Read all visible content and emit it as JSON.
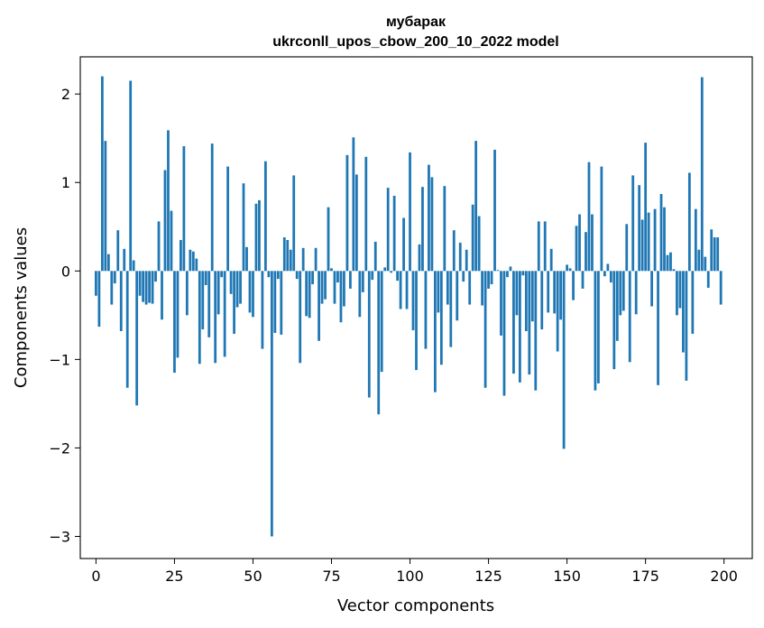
{
  "chart_data": {
    "type": "bar",
    "title": "мубарак",
    "subtitle": "ukrconll_upos_cbow_200_10_2022 model",
    "xlabel": "Vector components",
    "ylabel": "Components values",
    "xlim": [
      -5,
      209
    ],
    "ylim": [
      -3.25,
      2.42
    ],
    "xticks": [
      0,
      25,
      50,
      75,
      100,
      125,
      150,
      175,
      200
    ],
    "yticks": [
      -3,
      -2,
      -1,
      0,
      1,
      2
    ],
    "ytick_labels": [
      "−3",
      "−2",
      "−1",
      "0",
      "1",
      "2"
    ],
    "bar_color": "#1f77b4",
    "grid": false,
    "x": [
      0,
      1,
      2,
      3,
      4,
      5,
      6,
      7,
      8,
      9,
      10,
      11,
      12,
      13,
      14,
      15,
      16,
      17,
      18,
      19,
      20,
      21,
      22,
      23,
      24,
      25,
      26,
      27,
      28,
      29,
      30,
      31,
      32,
      33,
      34,
      35,
      36,
      37,
      38,
      39,
      40,
      41,
      42,
      43,
      44,
      45,
      46,
      47,
      48,
      49,
      50,
      51,
      52,
      53,
      54,
      55,
      56,
      57,
      58,
      59,
      60,
      61,
      62,
      63,
      64,
      65,
      66,
      67,
      68,
      69,
      70,
      71,
      72,
      73,
      74,
      75,
      76,
      77,
      78,
      79,
      80,
      81,
      82,
      83,
      84,
      85,
      86,
      87,
      88,
      89,
      90,
      91,
      92,
      93,
      94,
      95,
      96,
      97,
      98,
      99,
      100,
      101,
      102,
      103,
      104,
      105,
      106,
      107,
      108,
      109,
      110,
      111,
      112,
      113,
      114,
      115,
      116,
      117,
      118,
      119,
      120,
      121,
      122,
      123,
      124,
      125,
      126,
      127,
      128,
      129,
      130,
      131,
      132,
      133,
      134,
      135,
      136,
      137,
      138,
      139,
      140,
      141,
      142,
      143,
      144,
      145,
      146,
      147,
      148,
      149,
      150,
      151,
      152,
      153,
      154,
      155,
      156,
      157,
      158,
      159,
      160,
      161,
      162,
      163,
      164,
      165,
      166,
      167,
      168,
      169,
      170,
      171,
      172,
      173,
      174,
      175,
      176,
      177,
      178,
      179,
      180,
      181,
      182,
      183,
      184,
      185,
      186,
      187,
      188,
      189,
      190,
      191,
      192,
      193,
      194,
      195,
      196,
      197,
      198,
      199
    ],
    "values": [
      -0.28,
      -0.63,
      2.2,
      1.47,
      0.19,
      -0.38,
      -0.14,
      0.46,
      -0.68,
      0.25,
      -1.32,
      2.15,
      0.12,
      -1.52,
      -0.28,
      -0.35,
      -0.38,
      -0.36,
      -0.37,
      -0.12,
      0.56,
      -0.55,
      1.14,
      1.59,
      0.68,
      -1.15,
      -0.98,
      0.35,
      1.41,
      -0.5,
      0.24,
      0.22,
      0.14,
      -1.05,
      -0.66,
      -0.16,
      -0.75,
      1.44,
      -1.04,
      -0.49,
      -0.07,
      -0.97,
      1.18,
      -0.26,
      -0.71,
      -0.41,
      -0.37,
      0.99,
      0.27,
      -0.47,
      -0.52,
      0.76,
      0.8,
      -0.88,
      1.24,
      -0.07,
      -3.0,
      -0.7,
      -0.09,
      -0.72,
      0.38,
      0.35,
      0.24,
      1.08,
      -0.09,
      -1.04,
      0.26,
      -0.51,
      -0.53,
      -0.15,
      0.26,
      -0.79,
      -0.37,
      -0.32,
      0.72,
      0.03,
      -0.37,
      -0.13,
      -0.58,
      -0.4,
      1.31,
      -0.2,
      1.51,
      1.09,
      -0.52,
      -0.24,
      1.29,
      -1.43,
      -0.1,
      0.33,
      -1.62,
      -1.14,
      0.04,
      0.94,
      -0.02,
      0.85,
      -0.11,
      -0.43,
      0.6,
      -0.43,
      1.34,
      -0.67,
      -1.12,
      0.3,
      0.95,
      -0.88,
      1.2,
      1.06,
      -1.37,
      -0.47,
      -1.06,
      0.96,
      -0.38,
      -0.86,
      0.46,
      -0.56,
      0.32,
      -0.12,
      0.24,
      -0.38,
      0.75,
      1.47,
      0.62,
      -0.39,
      -1.32,
      -0.2,
      -0.15,
      1.37,
      0.01,
      -0.73,
      -1.41,
      -0.07,
      0.05,
      -1.16,
      -0.5,
      -1.26,
      -0.05,
      -0.68,
      -1.17,
      -0.57,
      -1.35,
      0.56,
      -0.66,
      0.56,
      -0.47,
      0.25,
      -0.48,
      -0.91,
      -0.55,
      -2.01,
      0.07,
      0.03,
      -0.33,
      0.51,
      0.64,
      -0.2,
      0.44,
      1.23,
      0.64,
      -1.35,
      -1.27,
      1.18,
      -0.06,
      0.08,
      -0.13,
      -1.11,
      -0.79,
      -0.5,
      -0.45,
      0.53,
      -1.03,
      1.08,
      -0.49,
      0.97,
      0.58,
      1.45,
      0.66,
      -0.4,
      0.7,
      -1.29,
      0.87,
      0.72,
      0.18,
      0.21,
      0.02,
      -0.5,
      -0.42,
      -0.92,
      -1.24,
      1.11,
      -0.71,
      0.7,
      0.24,
      2.19,
      0.16,
      -0.19,
      0.47,
      0.38,
      0.38,
      -0.38
    ]
  }
}
